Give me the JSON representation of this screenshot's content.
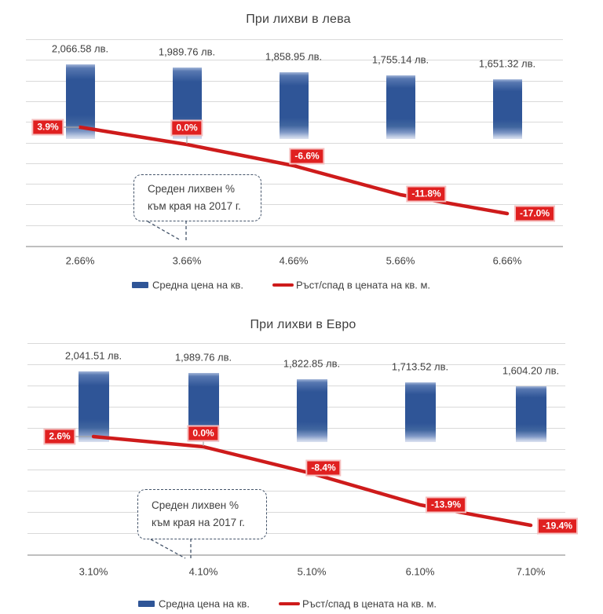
{
  "page": {
    "background": "#ffffff"
  },
  "chart_data": [
    {
      "type": "combo-bar-line",
      "title": "При лихви в лева",
      "categories": [
        "2.66%",
        "3.66%",
        "4.66%",
        "5.66%",
        "6.66%"
      ],
      "grid": true,
      "legend_position": "bottom",
      "series": [
        {
          "name": "Средна цена на кв.",
          "type": "bar",
          "values": [
            2066.58,
            1989.76,
            1858.95,
            1755.14,
            1651.32
          ],
          "labels": [
            "2,066.58 лв.",
            "1,989.76 лв.",
            "1,858.95 лв.",
            "1,755.14 лв.",
            "1,651.32 лв."
          ]
        },
        {
          "name": "Ръст/спад в цената на кв. м.",
          "type": "line",
          "values": [
            3.9,
            0.0,
            -6.6,
            -11.8,
            -17.0
          ],
          "labels": [
            "3.9%",
            "0.0%",
            "-6.6%",
            "-11.8%",
            "-17.0%"
          ]
        }
      ],
      "annotation": [
        "Среден лихвен %",
        "към края на 2017 г."
      ]
    },
    {
      "type": "combo-bar-line",
      "title": "При лихви в Евро",
      "categories": [
        "3.10%",
        "4.10%",
        "5.10%",
        "6.10%",
        "7.10%"
      ],
      "grid": true,
      "legend_position": "bottom",
      "series": [
        {
          "name": "Средна цена на кв.",
          "type": "bar",
          "values": [
            2041.51,
            1989.76,
            1822.85,
            1713.52,
            1604.2
          ],
          "labels": [
            "2,041.51 лв.",
            "1,989.76 лв.",
            "1,822.85 лв.",
            "1,713.52 лв.",
            "1,604.20 лв."
          ]
        },
        {
          "name": "Ръст/спад в цената на кв. м.",
          "type": "line",
          "values": [
            2.6,
            0.0,
            -8.4,
            -13.9,
            -19.4
          ],
          "labels": [
            "2.6%",
            "0.0%",
            "-8.4%",
            "-13.9%",
            "-19.4%"
          ]
        }
      ],
      "annotation": [
        "Среден лихвен %",
        "към края на 2017 г."
      ]
    }
  ],
  "colors": {
    "bar": "#2F5597",
    "line": "#CE1B1B",
    "point_label_bg": "#E02020",
    "point_label_text": "#FFFFFF",
    "gridline": "#D9D9D9",
    "axis_line": "#BFBFBF",
    "text": "#3F3F3F",
    "callout_border": "#44546A"
  }
}
